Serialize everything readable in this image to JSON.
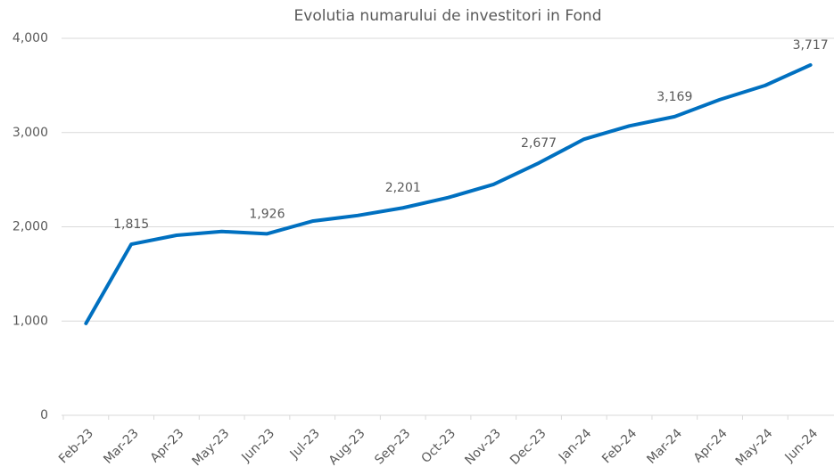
{
  "chart_data": {
    "type": "line",
    "title": "Evolutia numarului de investitori in Fond",
    "categories": [
      "Feb-23",
      "Mar-23",
      "Apr-23",
      "May-23",
      "Jun-23",
      "Jul-23",
      "Aug-23",
      "Sep-23",
      "Oct-23",
      "Nov-23",
      "Dec-23",
      "Jan-24",
      "Feb-24",
      "Mar-24",
      "Apr-24",
      "May-24",
      "Jun-24"
    ],
    "series": [
      {
        "name": "Investitori",
        "color": "#0070c0",
        "values": [
          975,
          1815,
          1910,
          1950,
          1926,
          2060,
          2120,
          2201,
          2310,
          2450,
          2677,
          2930,
          3070,
          3169,
          3350,
          3500,
          3717
        ],
        "value_labels": [
          null,
          "1,815",
          null,
          null,
          "1,926",
          null,
          null,
          "2,201",
          null,
          null,
          "2,677",
          null,
          null,
          "3,169",
          null,
          null,
          "3,717"
        ]
      }
    ],
    "ylim": [
      0,
      4000
    ],
    "yticks": [
      0,
      {
        "value": 1000,
        "label": "1,000"
      },
      {
        "value": 2000,
        "label": "2,000"
      },
      {
        "value": 3000,
        "label": "3,000"
      },
      {
        "value": 4000,
        "label": "4,000"
      }
    ],
    "grid": true
  }
}
